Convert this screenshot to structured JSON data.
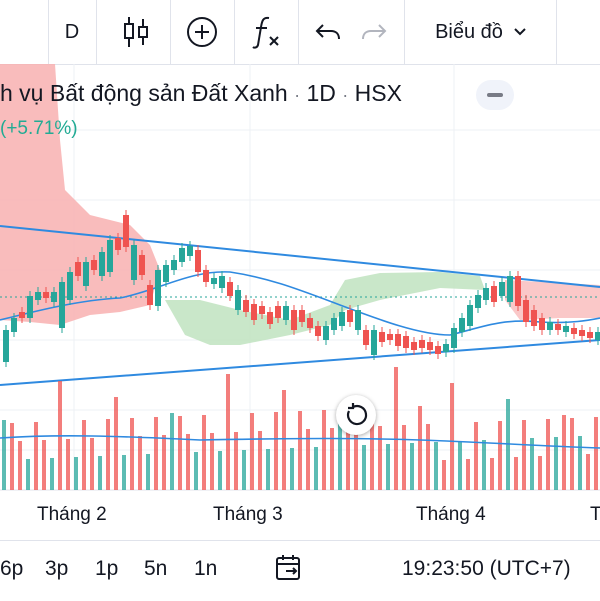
{
  "toolbar": {
    "interval": "D",
    "chart_type_label": "Biểu đồ"
  },
  "legend": {
    "title": "h vụ Bất động sản Đất Xanh",
    "separator": "·",
    "interval": "1D",
    "exchange": "HSX",
    "change": "(+5.71%)"
  },
  "time_axis": {
    "labels": [
      "Tháng 2",
      "Tháng 3",
      "Tháng 4",
      "T"
    ]
  },
  "bottom_bar": {
    "ranges": [
      "6p",
      "3p",
      "1p",
      "5n",
      "1n"
    ],
    "clock": "19:23:50 (UTC+7)"
  },
  "colors": {
    "up": "#26a69a",
    "down": "#ef5350",
    "cloud_bear": "#f8b0b0",
    "cloud_bull": "#bfe3c0",
    "line": "#2f8ae0"
  }
}
